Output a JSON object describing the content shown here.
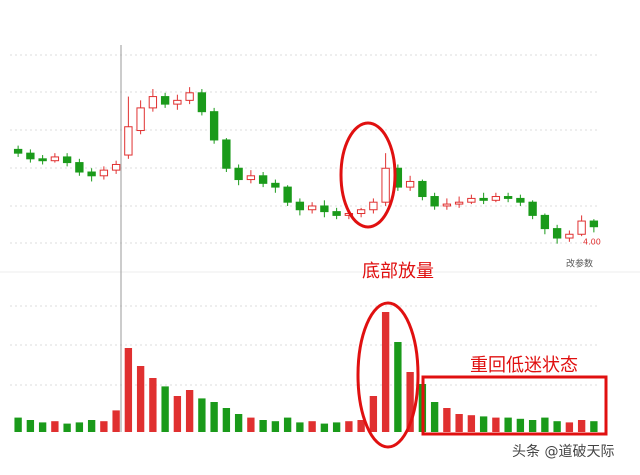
{
  "chart_data": {
    "type": "candlestick",
    "annotation_1": "底部放量",
    "annotation_2": "重回低迷状态",
    "param_label": "改参数",
    "low_label": "4.00",
    "watermark": "头条 @道破天际",
    "up_color": "#e03030",
    "down_color": "#1a9a1a",
    "ylim": [
      3.94,
      5.08
    ],
    "volume_ylim": [
      0,
      110
    ],
    "open": [
      4.5,
      4.48,
      4.45,
      4.44,
      4.46,
      4.43,
      4.38,
      4.36,
      4.39,
      4.47,
      4.6,
      4.72,
      4.78,
      4.74,
      4.76,
      4.8,
      4.7,
      4.55,
      4.4,
      4.34,
      4.36,
      4.32,
      4.3,
      4.22,
      4.18,
      4.2,
      4.17,
      4.15,
      4.16,
      4.18,
      4.22,
      4.4,
      4.3,
      4.33,
      4.25,
      4.2,
      4.21,
      4.22,
      4.24,
      4.23,
      4.25,
      4.24,
      4.22,
      4.15,
      4.08,
      4.03,
      4.05,
      4.12
    ],
    "close": [
      4.48,
      4.45,
      4.44,
      4.46,
      4.43,
      4.38,
      4.36,
      4.39,
      4.42,
      4.62,
      4.72,
      4.78,
      4.74,
      4.76,
      4.8,
      4.7,
      4.55,
      4.4,
      4.34,
      4.36,
      4.32,
      4.3,
      4.22,
      4.18,
      4.2,
      4.17,
      4.15,
      4.16,
      4.18,
      4.22,
      4.4,
      4.3,
      4.33,
      4.25,
      4.2,
      4.21,
      4.22,
      4.24,
      4.23,
      4.25,
      4.24,
      4.22,
      4.15,
      4.08,
      4.03,
      4.05,
      4.12,
      4.09
    ],
    "high": [
      4.52,
      4.5,
      4.47,
      4.48,
      4.48,
      4.45,
      4.4,
      4.41,
      4.44,
      4.78,
      4.76,
      4.82,
      4.8,
      4.79,
      4.83,
      4.82,
      4.72,
      4.56,
      4.42,
      4.39,
      4.38,
      4.34,
      4.31,
      4.24,
      4.22,
      4.23,
      4.19,
      4.18,
      4.19,
      4.24,
      4.48,
      4.42,
      4.36,
      4.34,
      4.27,
      4.24,
      4.25,
      4.26,
      4.27,
      4.27,
      4.27,
      4.26,
      4.23,
      4.16,
      4.1,
      4.07,
      4.15,
      4.13
    ],
    "low": [
      4.46,
      4.43,
      4.42,
      4.43,
      4.41,
      4.36,
      4.33,
      4.34,
      4.37,
      4.45,
      4.58,
      4.7,
      4.72,
      4.71,
      4.74,
      4.68,
      4.53,
      4.38,
      4.31,
      4.32,
      4.3,
      4.27,
      4.2,
      4.15,
      4.16,
      4.14,
      4.13,
      4.13,
      4.14,
      4.16,
      4.2,
      4.28,
      4.28,
      4.23,
      4.18,
      4.18,
      4.19,
      4.21,
      4.21,
      4.22,
      4.22,
      4.2,
      4.13,
      4.05,
      4.0,
      4.01,
      4.04,
      4.06
    ],
    "volume": [
      12,
      10,
      8,
      9,
      7,
      8,
      10,
      9,
      18,
      70,
      55,
      45,
      38,
      30,
      35,
      28,
      25,
      20,
      15,
      12,
      10,
      9,
      12,
      8,
      9,
      7,
      8,
      9,
      10,
      30,
      100,
      75,
      50,
      40,
      25,
      20,
      15,
      14,
      13,
      12,
      12,
      11,
      10,
      12,
      9,
      8,
      10,
      9
    ]
  }
}
